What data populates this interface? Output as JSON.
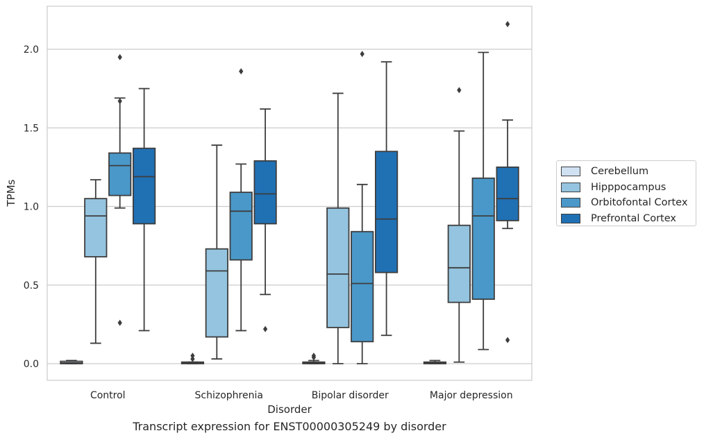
{
  "chart_data": {
    "type": "box",
    "title": "",
    "caption": "Transcript expression for ENST00000305249 by disorder",
    "xlabel": "Disorder",
    "ylabel": "TPMs",
    "ylim": [
      -0.1,
      2.28
    ],
    "yticks": [
      "0.0",
      "0.5",
      "1.0",
      "1.5",
      "2.0"
    ],
    "ytick_values": [
      0.0,
      0.5,
      1.0,
      1.5,
      2.0
    ],
    "grid": true,
    "legend_position": "right",
    "categories": [
      "Control",
      "Schizophrenia",
      "Bipolar disorder",
      "Major depression"
    ],
    "series": [
      {
        "name": "Cerebellum",
        "color": "#d0e1f2",
        "boxes": [
          {
            "category": "Control",
            "whislo": 0.0,
            "q1": 0.0,
            "med": 0.005,
            "q3": 0.015,
            "whishi": 0.02,
            "fliers": []
          },
          {
            "category": "Schizophrenia",
            "whislo": 0.0,
            "q1": 0.0,
            "med": 0.005,
            "q3": 0.01,
            "whishi": 0.01,
            "fliers": [
              0.03,
              0.05
            ]
          },
          {
            "category": "Bipolar disorder",
            "whislo": 0.0,
            "q1": 0.0,
            "med": 0.005,
            "q3": 0.01,
            "whishi": 0.02,
            "fliers": [
              0.04,
              0.05
            ]
          },
          {
            "category": "Major depression",
            "whislo": 0.0,
            "q1": 0.0,
            "med": 0.005,
            "q3": 0.01,
            "whishi": 0.02,
            "fliers": []
          }
        ]
      },
      {
        "name": "Hipppocampus",
        "color": "#94c4df",
        "boxes": [
          {
            "category": "Control",
            "whislo": 0.13,
            "q1": 0.68,
            "med": 0.94,
            "q3": 1.05,
            "whishi": 1.17,
            "fliers": []
          },
          {
            "category": "Schizophrenia",
            "whislo": 0.03,
            "q1": 0.17,
            "med": 0.59,
            "q3": 0.73,
            "whishi": 1.39,
            "fliers": []
          },
          {
            "category": "Bipolar disorder",
            "whislo": 0.0,
            "q1": 0.23,
            "med": 0.57,
            "q3": 0.99,
            "whishi": 1.72,
            "fliers": []
          },
          {
            "category": "Major depression",
            "whislo": 0.01,
            "q1": 0.39,
            "med": 0.61,
            "q3": 0.88,
            "whishi": 1.48,
            "fliers": [
              1.74
            ]
          }
        ]
      },
      {
        "name": "Orbitofontal Cortex",
        "color": "#4a98c9",
        "boxes": [
          {
            "category": "Control",
            "whislo": 0.99,
            "q1": 1.07,
            "med": 1.26,
            "q3": 1.34,
            "whishi": 1.69,
            "fliers": [
              1.95,
              1.67,
              0.26
            ]
          },
          {
            "category": "Schizophrenia",
            "whislo": 0.21,
            "q1": 0.66,
            "med": 0.97,
            "q3": 1.09,
            "whishi": 1.27,
            "fliers": [
              1.86
            ]
          },
          {
            "category": "Bipolar disorder",
            "whislo": 0.0,
            "q1": 0.14,
            "med": 0.51,
            "q3": 0.84,
            "whishi": 1.14,
            "fliers": [
              1.97
            ]
          },
          {
            "category": "Major depression",
            "whislo": 0.09,
            "q1": 0.41,
            "med": 0.94,
            "q3": 1.18,
            "whishi": 1.98,
            "fliers": []
          }
        ]
      },
      {
        "name": "Prefrontal Cortex",
        "color": "#2070b4",
        "boxes": [
          {
            "category": "Control",
            "whislo": 0.21,
            "q1": 0.89,
            "med": 1.19,
            "q3": 1.37,
            "whishi": 1.75,
            "fliers": []
          },
          {
            "category": "Schizophrenia",
            "whislo": 0.44,
            "q1": 0.89,
            "med": 1.08,
            "q3": 1.29,
            "whishi": 1.62,
            "fliers": [
              0.22
            ]
          },
          {
            "category": "Bipolar disorder",
            "whislo": 0.18,
            "q1": 0.58,
            "med": 0.92,
            "q3": 1.35,
            "whishi": 1.92,
            "fliers": []
          },
          {
            "category": "Major depression",
            "whislo": 0.86,
            "q1": 0.91,
            "med": 1.05,
            "q3": 1.25,
            "whishi": 1.55,
            "fliers": [
              2.16,
              0.15
            ]
          }
        ]
      }
    ]
  }
}
